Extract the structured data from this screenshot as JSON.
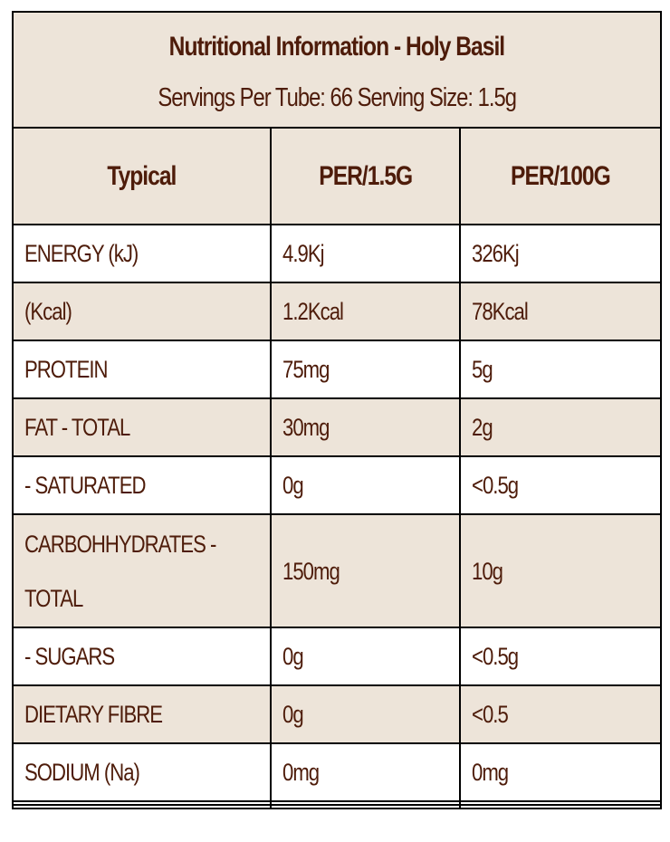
{
  "title": "Nutritional Information - Holy Basil",
  "subtitle": "Servings Per Tube: 66 Serving Size: 1.5g",
  "headers": [
    "Typical",
    "PER/1.5G",
    "PER/100G"
  ],
  "rows": [
    [
      "ENERGY (kJ)",
      "4.9Kj",
      "326Kj"
    ],
    [
      "(Kcal)",
      "1.2Kcal",
      "78Kcal"
    ],
    [
      "PROTEIN",
      "75mg",
      "5g"
    ],
    [
      "FAT - TOTAL",
      "30mg",
      "2g"
    ],
    [
      "- SATURATED",
      "0g",
      "<0.5g"
    ],
    [
      "CARBOHHYDRATES - TOTAL",
      "150mg",
      "10g"
    ],
    [
      "- SUGARS",
      "0g",
      "<0.5g"
    ],
    [
      "DIETARY FIBRE",
      "0g",
      "<0.5"
    ],
    [
      "SODIUM (Na)",
      "0mg",
      "0mg"
    ]
  ]
}
